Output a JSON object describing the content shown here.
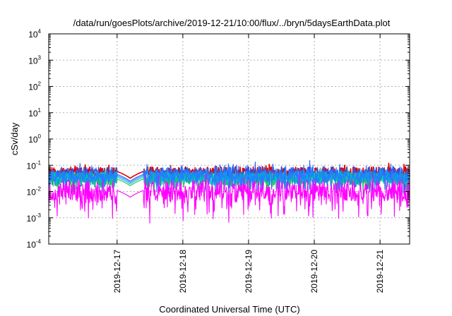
{
  "chart_data": {
    "type": "line",
    "title": "/data/run/goesPlots/archive/2019-12-21/10:00/flux/../bryn/5daysEarthData.plot",
    "xlabel": "Coordinated Universal Time (UTC)",
    "ylabel": "cSv/day",
    "yscale": "log",
    "ylim": [
      0.0001,
      10000
    ],
    "y_ticks": [
      {
        "base": "10",
        "exp": "-4"
      },
      {
        "base": "10",
        "exp": "-3"
      },
      {
        "base": "10",
        "exp": "-2"
      },
      {
        "base": "10",
        "exp": "-1"
      },
      {
        "base": "10",
        "exp": "0"
      },
      {
        "base": "10",
        "exp": "1"
      },
      {
        "base": "10",
        "exp": "2"
      },
      {
        "base": "10",
        "exp": "3"
      },
      {
        "base": "10",
        "exp": "4"
      }
    ],
    "x_range_days": [
      "2019-12-16",
      "2019-12-21"
    ],
    "x_start_day": 15.96,
    "x_end_day": 21.45,
    "x_ticks": [
      {
        "label": "2019-12-17",
        "day": 17
      },
      {
        "label": "2019-12-18",
        "day": 18
      },
      {
        "label": "2019-12-19",
        "day": 19
      },
      {
        "label": "2019-12-20",
        "day": 20
      },
      {
        "label": "2019-12-21",
        "day": 21
      }
    ],
    "grid": true,
    "data_gap_days": [
      17.0,
      17.4
    ],
    "series": [
      {
        "color": "#e00000",
        "base": 0.058,
        "spread": 0.25,
        "spikes": 0.3
      },
      {
        "color": "#2060ff",
        "base": 0.045,
        "spread": 0.45,
        "spikes": 0.6
      },
      {
        "color": "#20c060",
        "base": 0.03,
        "spread": 0.35,
        "spikes": 0.4
      },
      {
        "color": "#00c0c0",
        "base": 0.035,
        "spread": 0.3,
        "spikes": 0.3
      },
      {
        "color": "#2080ff",
        "base": 0.04,
        "spread": 0.35,
        "spikes": 0.5
      },
      {
        "color": "#ff00ff",
        "base": 0.011,
        "spread": 0.6,
        "spikes": 0.9
      }
    ]
  }
}
